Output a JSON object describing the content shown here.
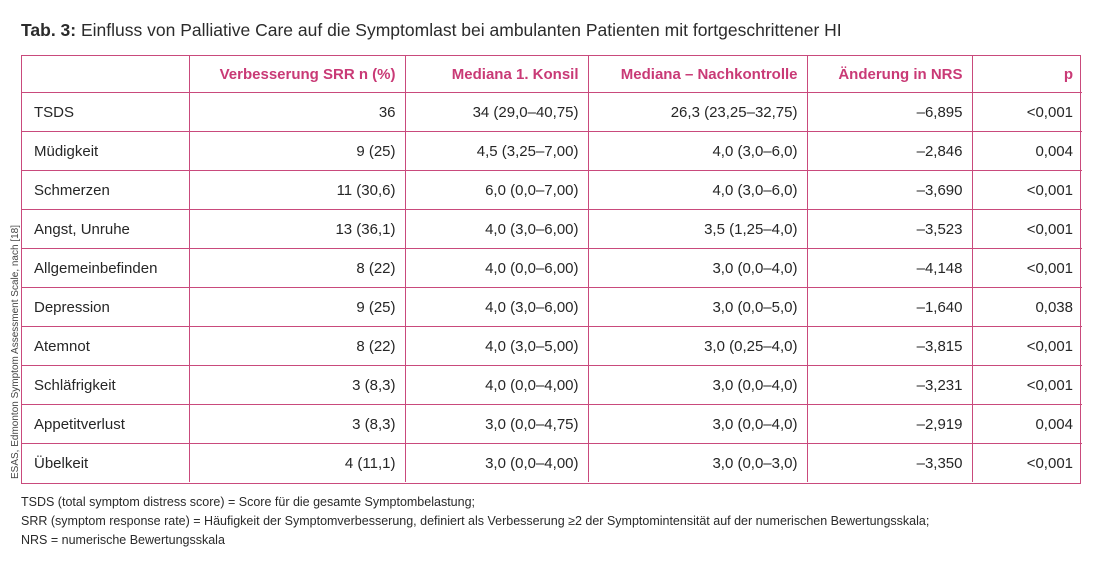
{
  "title": {
    "label": "Tab. 3:",
    "text": "Einfluss von Palliative Care auf die Symptomlast bei ambulanten Patienten mit fortgeschrittener HI"
  },
  "side_note": "ESAS, Edmonton Symptom Assessment Scale, nach [18]",
  "table": {
    "headers": [
      "",
      "Verbesserung SRR n (%)",
      "Mediana 1. Konsil",
      "Mediana – Nachkontrolle",
      "Änderung in NRS",
      "p"
    ],
    "rows": [
      [
        "TSDS",
        "36",
        "34 (29,0–40,75)",
        "26,3 (23,25–32,75)",
        "–6,895",
        "<0,001"
      ],
      [
        "Müdigkeit",
        "9 (25)",
        "4,5 (3,25–7,00)",
        "4,0 (3,0–6,0)",
        "–2,846",
        "0,004"
      ],
      [
        "Schmerzen",
        "11 (30,6)",
        "6,0 (0,0–7,00)",
        "4,0 (3,0–6,0)",
        "–3,690",
        "<0,001"
      ],
      [
        "Angst, Unruhe",
        "13 (36,1)",
        "4,0 (3,0–6,00)",
        "3,5 (1,25–4,0)",
        "–3,523",
        "<0,001"
      ],
      [
        "Allgemeinbefinden",
        "8 (22)",
        "4,0 (0,0–6,00)",
        "3,0 (0,0–4,0)",
        "–4,148",
        "<0,001"
      ],
      [
        "Depression",
        "9 (25)",
        "4,0 (3,0–6,00)",
        "3,0 (0,0–5,0)",
        "–1,640",
        "0,038"
      ],
      [
        "Atemnot",
        "8 (22)",
        "4,0 (3,0–5,00)",
        "3,0 (0,25–4,0)",
        "–3,815",
        "<0,001"
      ],
      [
        "Schläfrigkeit",
        "3 (8,3)",
        "4,0 (0,0–4,00)",
        "3,0 (0,0–4,0)",
        "–3,231",
        "<0,001"
      ],
      [
        "Appetitverlust",
        "3 (8,3)",
        "3,0 (0,0–4,75)",
        "3,0 (0,0–4,0)",
        "–2,919",
        "0,004"
      ],
      [
        "Übelkeit",
        "4 (11,1)",
        "3,0 (0,0–4,00)",
        "3,0 (0,0–3,0)",
        "–3,350",
        "<0,001"
      ]
    ]
  },
  "footnotes": [
    "TSDS (total symptom distress score) = Score für die gesamte Symptombelastung;",
    "SRR (symptom response rate) = Häufigkeit der Symptomverbesserung, definiert als Verbesserung ≥2 der Symptomintensität auf der numerischen Bewertungsskala;",
    "NRS = numerische Bewertungsskala"
  ],
  "colors": {
    "accent": "#c93a76",
    "border": "#c94a7c"
  }
}
